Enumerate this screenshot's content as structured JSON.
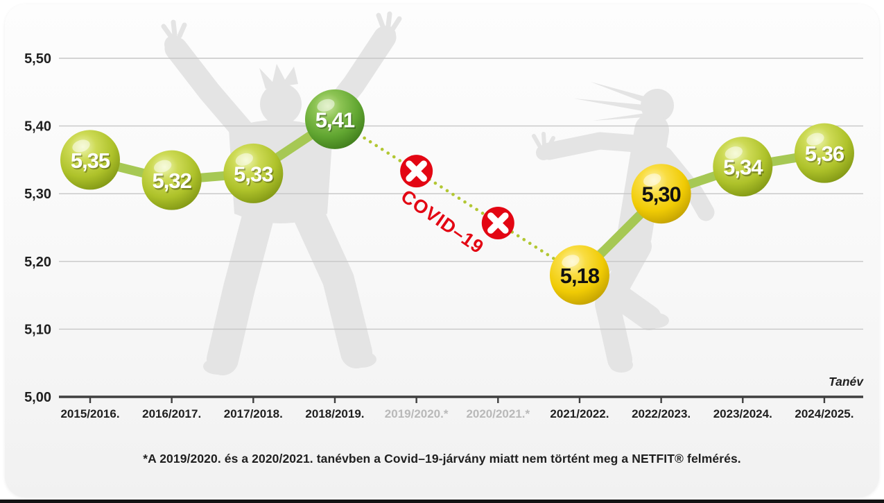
{
  "chart_data": {
    "type": "line",
    "title": "",
    "xlabel": "Tanév",
    "ylabel": "",
    "ylim": [
      5.0,
      5.5
    ],
    "grid": true,
    "ytick_values": [
      5.0,
      5.1,
      5.2,
      5.3,
      5.4,
      5.5
    ],
    "ytick_labels": [
      "5,00",
      "5,10",
      "5,20",
      "5,30",
      "5,40",
      "5,50"
    ],
    "categories": [
      "2015/2016.",
      "2016/2017.",
      "2017/2018.",
      "2018/2019.",
      "2019/2020.*",
      "2020/2021.*",
      "2021/2022.",
      "2022/2023.",
      "2023/2024.",
      "2024/2025."
    ],
    "muted_category_indexes": [
      4,
      5
    ],
    "values": [
      5.35,
      5.32,
      5.33,
      5.41,
      null,
      null,
      5.18,
      5.3,
      5.34,
      5.36
    ],
    "point_labels": [
      "5,35",
      "5,32",
      "5,33",
      "5,41",
      null,
      null,
      "5,18",
      "5,30",
      "5,34",
      "5,36"
    ],
    "point_styles": [
      "yellowgreen",
      "yellowgreen",
      "yellowgreen",
      "green",
      null,
      null,
      "yellow",
      "yellow",
      "yellowgreen",
      "yellowgreen"
    ],
    "missing_marker": "x-circle",
    "covid_annotation": "COVID–19",
    "footnote": "*A 2019/2020. és a 2020/2021. tanévben a Covid–19-járvány miatt nem történt meg a NETFIT® felmérés.",
    "colors": {
      "green_ball": "#5aa12d",
      "yellowgreen_ball": "#aec22a",
      "yellow_ball": "#f0cb04",
      "line": "#a6c854",
      "dotted_line": "#b2c733",
      "covid_red": "#e30613",
      "grid_line": "#c6c6c6",
      "axis_line": "#3f3f3f",
      "label_dark": "#1f1f1f",
      "label_muted": "#b9b9b9",
      "ball_text_light": "#ffffff",
      "ball_text_dark": "#111111",
      "silhouette": "#e4e4e4"
    }
  }
}
